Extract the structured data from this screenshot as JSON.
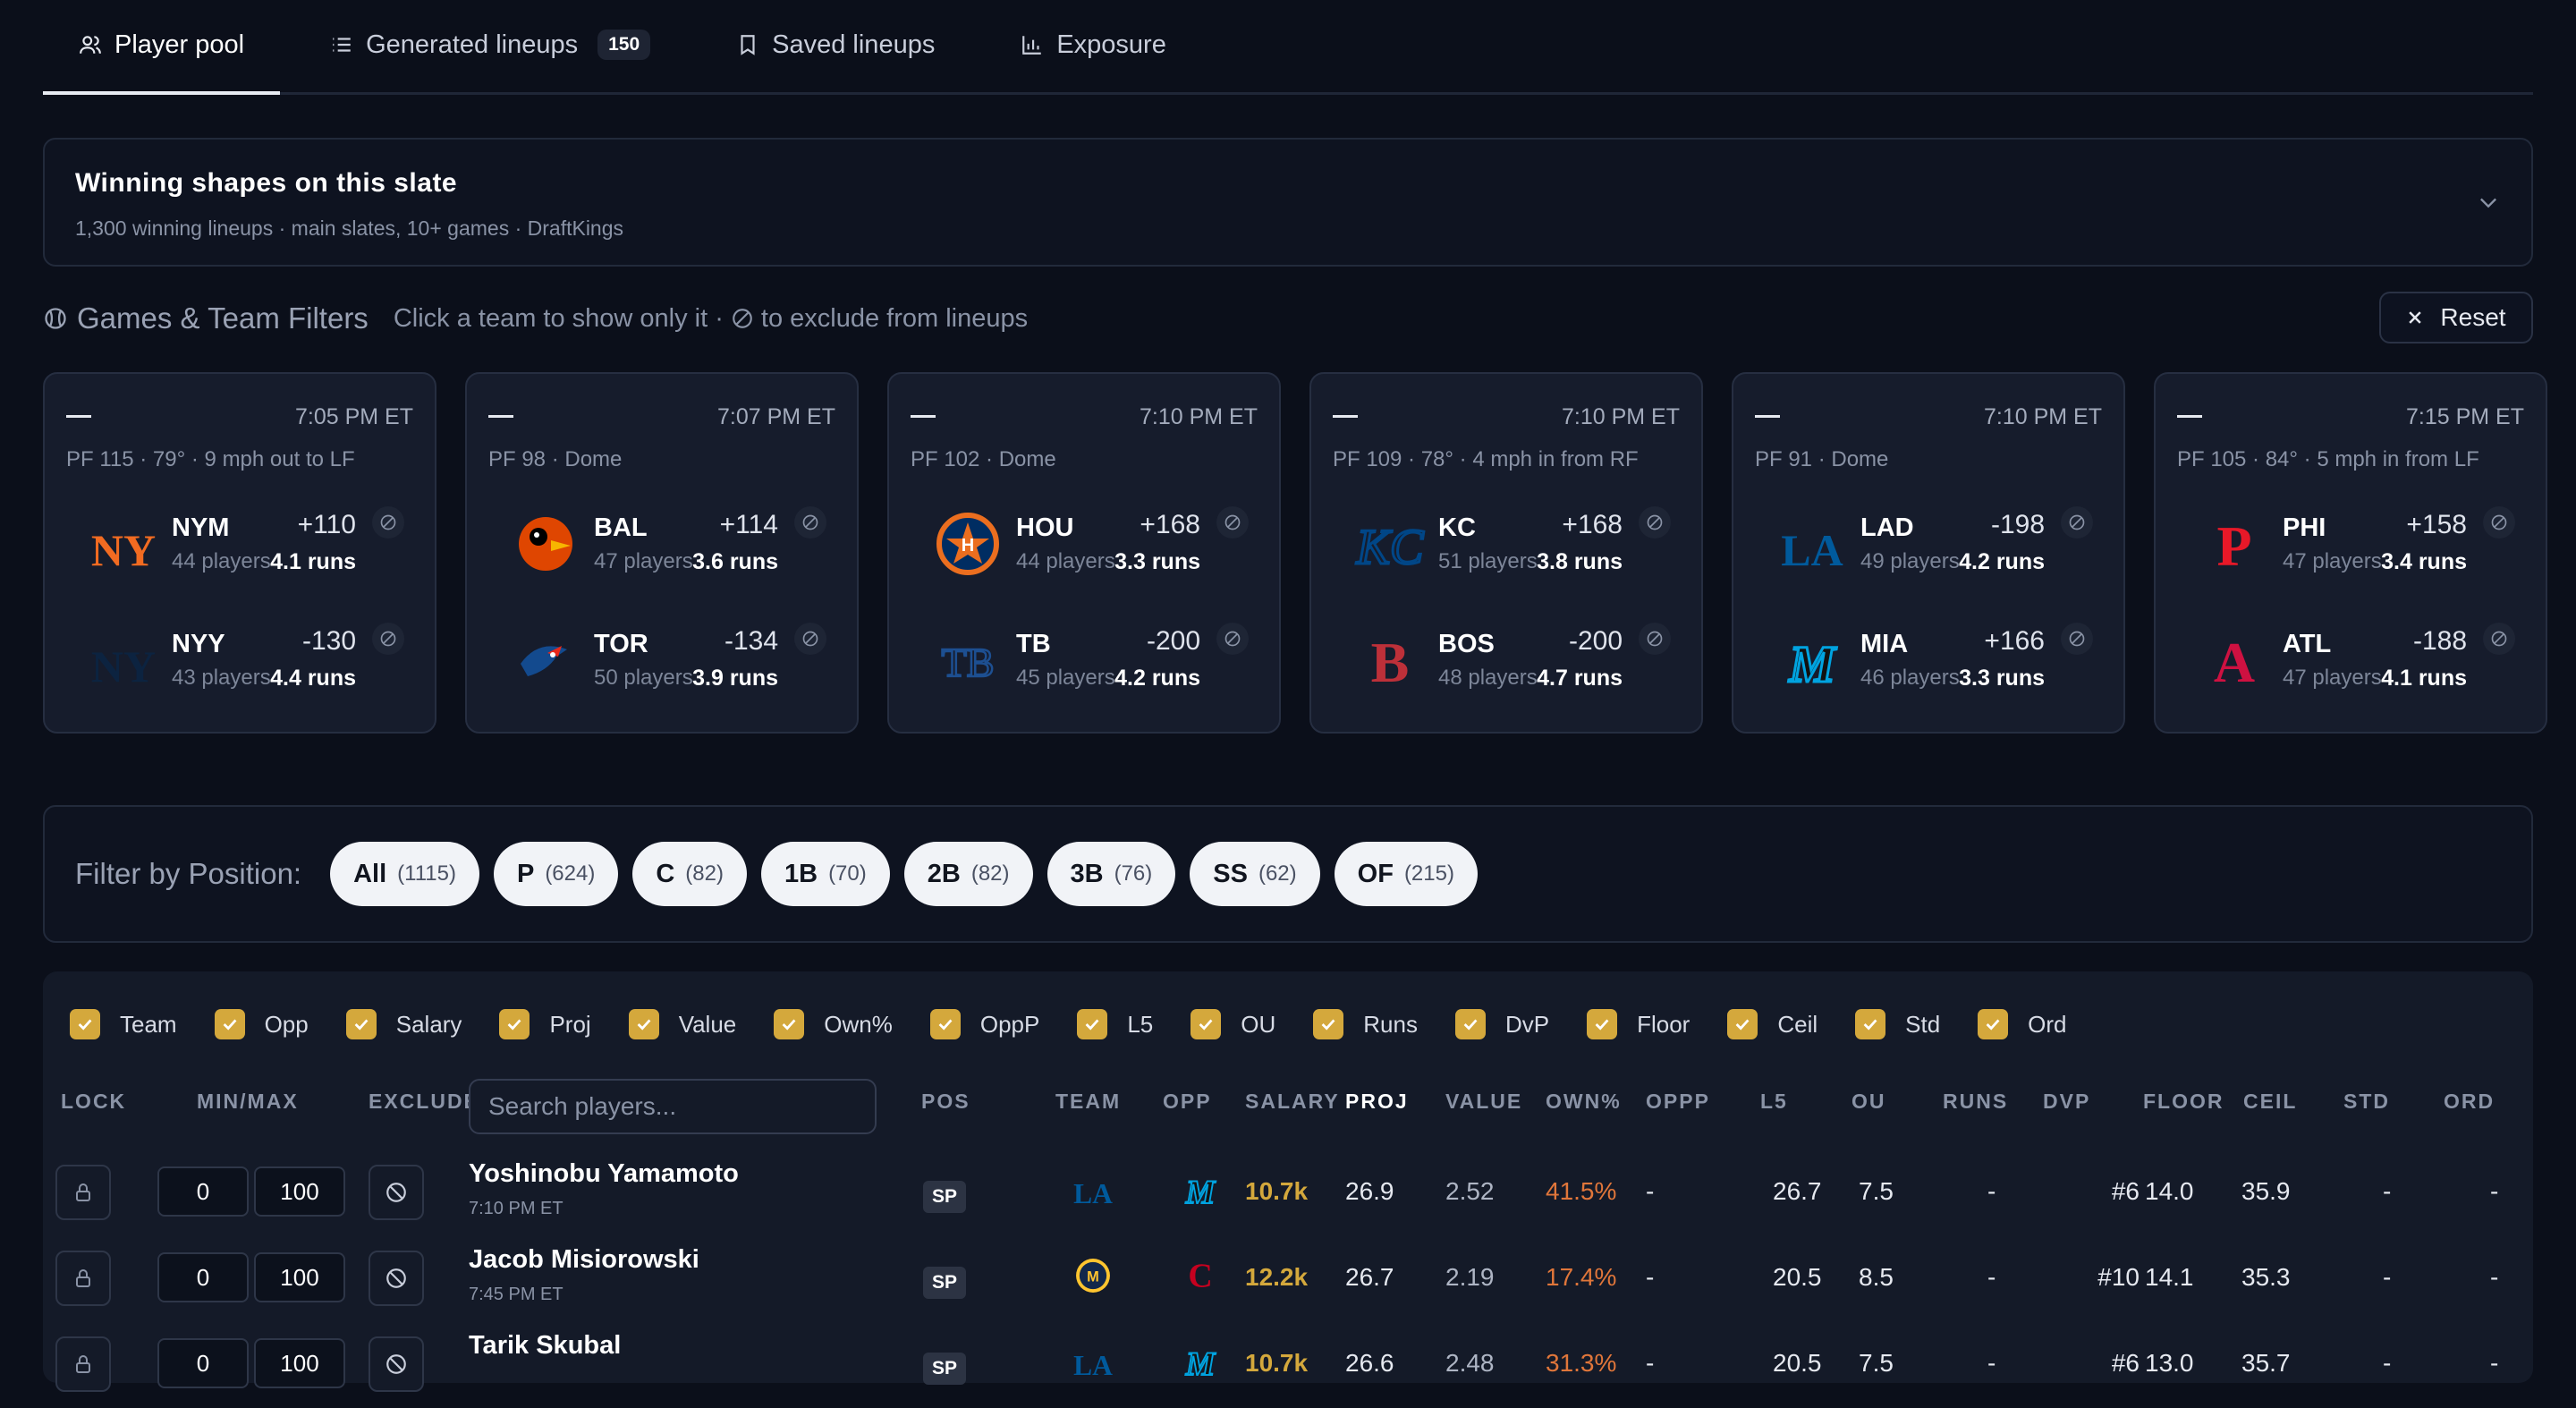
{
  "tabs": [
    {
      "label": "Player pool",
      "icon": "users-icon"
    },
    {
      "label": "Generated lineups",
      "icon": "list-icon",
      "badge": "150"
    },
    {
      "label": "Saved lineups",
      "icon": "bookmark-icon"
    },
    {
      "label": "Exposure",
      "icon": "bar-chart-icon"
    }
  ],
  "shapes": {
    "title": "Winning shapes on this slate",
    "subtitle": "1,300 winning lineups · main slates, 10+ games · DraftKings"
  },
  "games_header": {
    "title": "Games & Team Filters",
    "hint_pre": "Click a team to show only it ·",
    "hint_post": "to exclude from lineups",
    "reset_label": "Reset"
  },
  "games": [
    {
      "time": "7:05 PM ET",
      "meta": "PF 115 · 79° · 9 mph out to LF",
      "teams": [
        {
          "abbr": "NYM",
          "players": "44 players",
          "odds": "+110",
          "runs": "4.1 runs",
          "color": "#f26b21",
          "logo": "NY"
        },
        {
          "abbr": "NYY",
          "players": "43 players",
          "odds": "-130",
          "runs": "4.4 runs",
          "color": "#0c2340",
          "logo": "NY"
        }
      ]
    },
    {
      "time": "7:07 PM ET",
      "meta": "PF 98 · Dome",
      "teams": [
        {
          "abbr": "BAL",
          "players": "47 players",
          "odds": "+114",
          "runs": "3.6 runs",
          "color": "#df4601",
          "logo": "bird"
        },
        {
          "abbr": "TOR",
          "players": "50 players",
          "odds": "-134",
          "runs": "3.9 runs",
          "color": "#134a8e",
          "logo": "jay"
        }
      ]
    },
    {
      "time": "7:10 PM ET",
      "meta": "PF 102 · Dome",
      "teams": [
        {
          "abbr": "HOU",
          "players": "44 players",
          "odds": "+168",
          "runs": "3.3 runs",
          "color": "#eb6e1f",
          "logo": "H"
        },
        {
          "abbr": "TB",
          "players": "45 players",
          "odds": "-200",
          "runs": "4.2 runs",
          "color": "#1d4f91",
          "logo": "TB"
        }
      ]
    },
    {
      "time": "7:10 PM ET",
      "meta": "PF 109 · 78° · 4 mph in from RF",
      "teams": [
        {
          "abbr": "KC",
          "players": "51 players",
          "odds": "+168",
          "runs": "3.8 runs",
          "color": "#004687",
          "logo": "KC"
        },
        {
          "abbr": "BOS",
          "players": "48 players",
          "odds": "-200",
          "runs": "4.7 runs",
          "color": "#bd3039",
          "logo": "B"
        }
      ]
    },
    {
      "time": "7:10 PM ET",
      "meta": "PF 91 · Dome",
      "teams": [
        {
          "abbr": "LAD",
          "players": "49 players",
          "odds": "-198",
          "runs": "4.2 runs",
          "color": "#005a9c",
          "logo": "LA"
        },
        {
          "abbr": "MIA",
          "players": "46 players",
          "odds": "+166",
          "runs": "3.3 runs",
          "color": "#00a3e0",
          "logo": "M"
        }
      ]
    },
    {
      "time": "7:15 PM ET",
      "meta": "PF 105 · 84° · 5 mph in from LF",
      "teams": [
        {
          "abbr": "PHI",
          "players": "47 players",
          "odds": "+158",
          "runs": "3.4 runs",
          "color": "#e81828",
          "logo": "P"
        },
        {
          "abbr": "ATL",
          "players": "47 players",
          "odds": "-188",
          "runs": "4.1 runs",
          "color": "#ce1141",
          "logo": "A"
        }
      ]
    }
  ],
  "position_filter": {
    "label": "Filter by Position:",
    "pills": [
      {
        "label": "All",
        "count": "(1115)"
      },
      {
        "label": "P",
        "count": "(624)"
      },
      {
        "label": "C",
        "count": "(82)"
      },
      {
        "label": "1B",
        "count": "(70)"
      },
      {
        "label": "2B",
        "count": "(82)"
      },
      {
        "label": "3B",
        "count": "(76)"
      },
      {
        "label": "SS",
        "count": "(62)"
      },
      {
        "label": "OF",
        "count": "(215)"
      }
    ]
  },
  "column_toggles": [
    "Team",
    "Opp",
    "Salary",
    "Proj",
    "Value",
    "Own%",
    "OppP",
    "L5",
    "OU",
    "Runs",
    "DvP",
    "Floor",
    "Ceil",
    "Std",
    "Ord"
  ],
  "table": {
    "headers": {
      "lock": "LOCK",
      "minmax": "MIN/MAX",
      "exclude": "EXCLUDE",
      "pos": "POS",
      "team": "TEAM",
      "opp": "OPP",
      "salary": "SALARY",
      "proj": "PROJ",
      "value": "VALUE",
      "own": "OWN%",
      "oppp": "OPPP",
      "l5": "L5",
      "ou": "OU",
      "runs": "RUNS",
      "dvp": "DVP",
      "floor": "FLOOR",
      "ceil": "CEIL",
      "std": "STD",
      "ord": "ORD"
    },
    "search_placeholder": "Search players...",
    "rows": [
      {
        "name": "Yoshinobu Yamamoto",
        "time": "7:10 PM ET",
        "min": "0",
        "max": "100",
        "pos": "SP",
        "team": "LA",
        "opp": "MIA",
        "salary": "10.7k",
        "proj": "26.9",
        "value": "2.52",
        "own": "41.5%",
        "oppp": "-",
        "l5": "26.7",
        "ou": "7.5",
        "runs": "-",
        "dvp": "#6",
        "floor": "14.0",
        "ceil": "35.9",
        "std": "-",
        "ord": "-"
      },
      {
        "name": "Jacob Misiorowski",
        "time": "7:45 PM ET",
        "min": "0",
        "max": "100",
        "pos": "SP",
        "team": "MIL",
        "opp": "CIN",
        "salary": "12.2k",
        "proj": "26.7",
        "value": "2.19",
        "own": "17.4%",
        "oppp": "-",
        "l5": "20.5",
        "ou": "8.5",
        "runs": "-",
        "dvp": "#10",
        "floor": "14.1",
        "ceil": "35.3",
        "std": "-",
        "ord": "-"
      },
      {
        "name": "Tarik Skubal",
        "time": "",
        "min": "0",
        "max": "100",
        "pos": "SP",
        "team": "LA",
        "opp": "MIA",
        "salary": "10.7k",
        "proj": "26.6",
        "value": "2.48",
        "own": "31.3%",
        "oppp": "-",
        "l5": "20.5",
        "ou": "7.5",
        "runs": "-",
        "dvp": "#6",
        "floor": "13.0",
        "ceil": "35.7",
        "std": "-",
        "ord": "-"
      }
    ]
  }
}
